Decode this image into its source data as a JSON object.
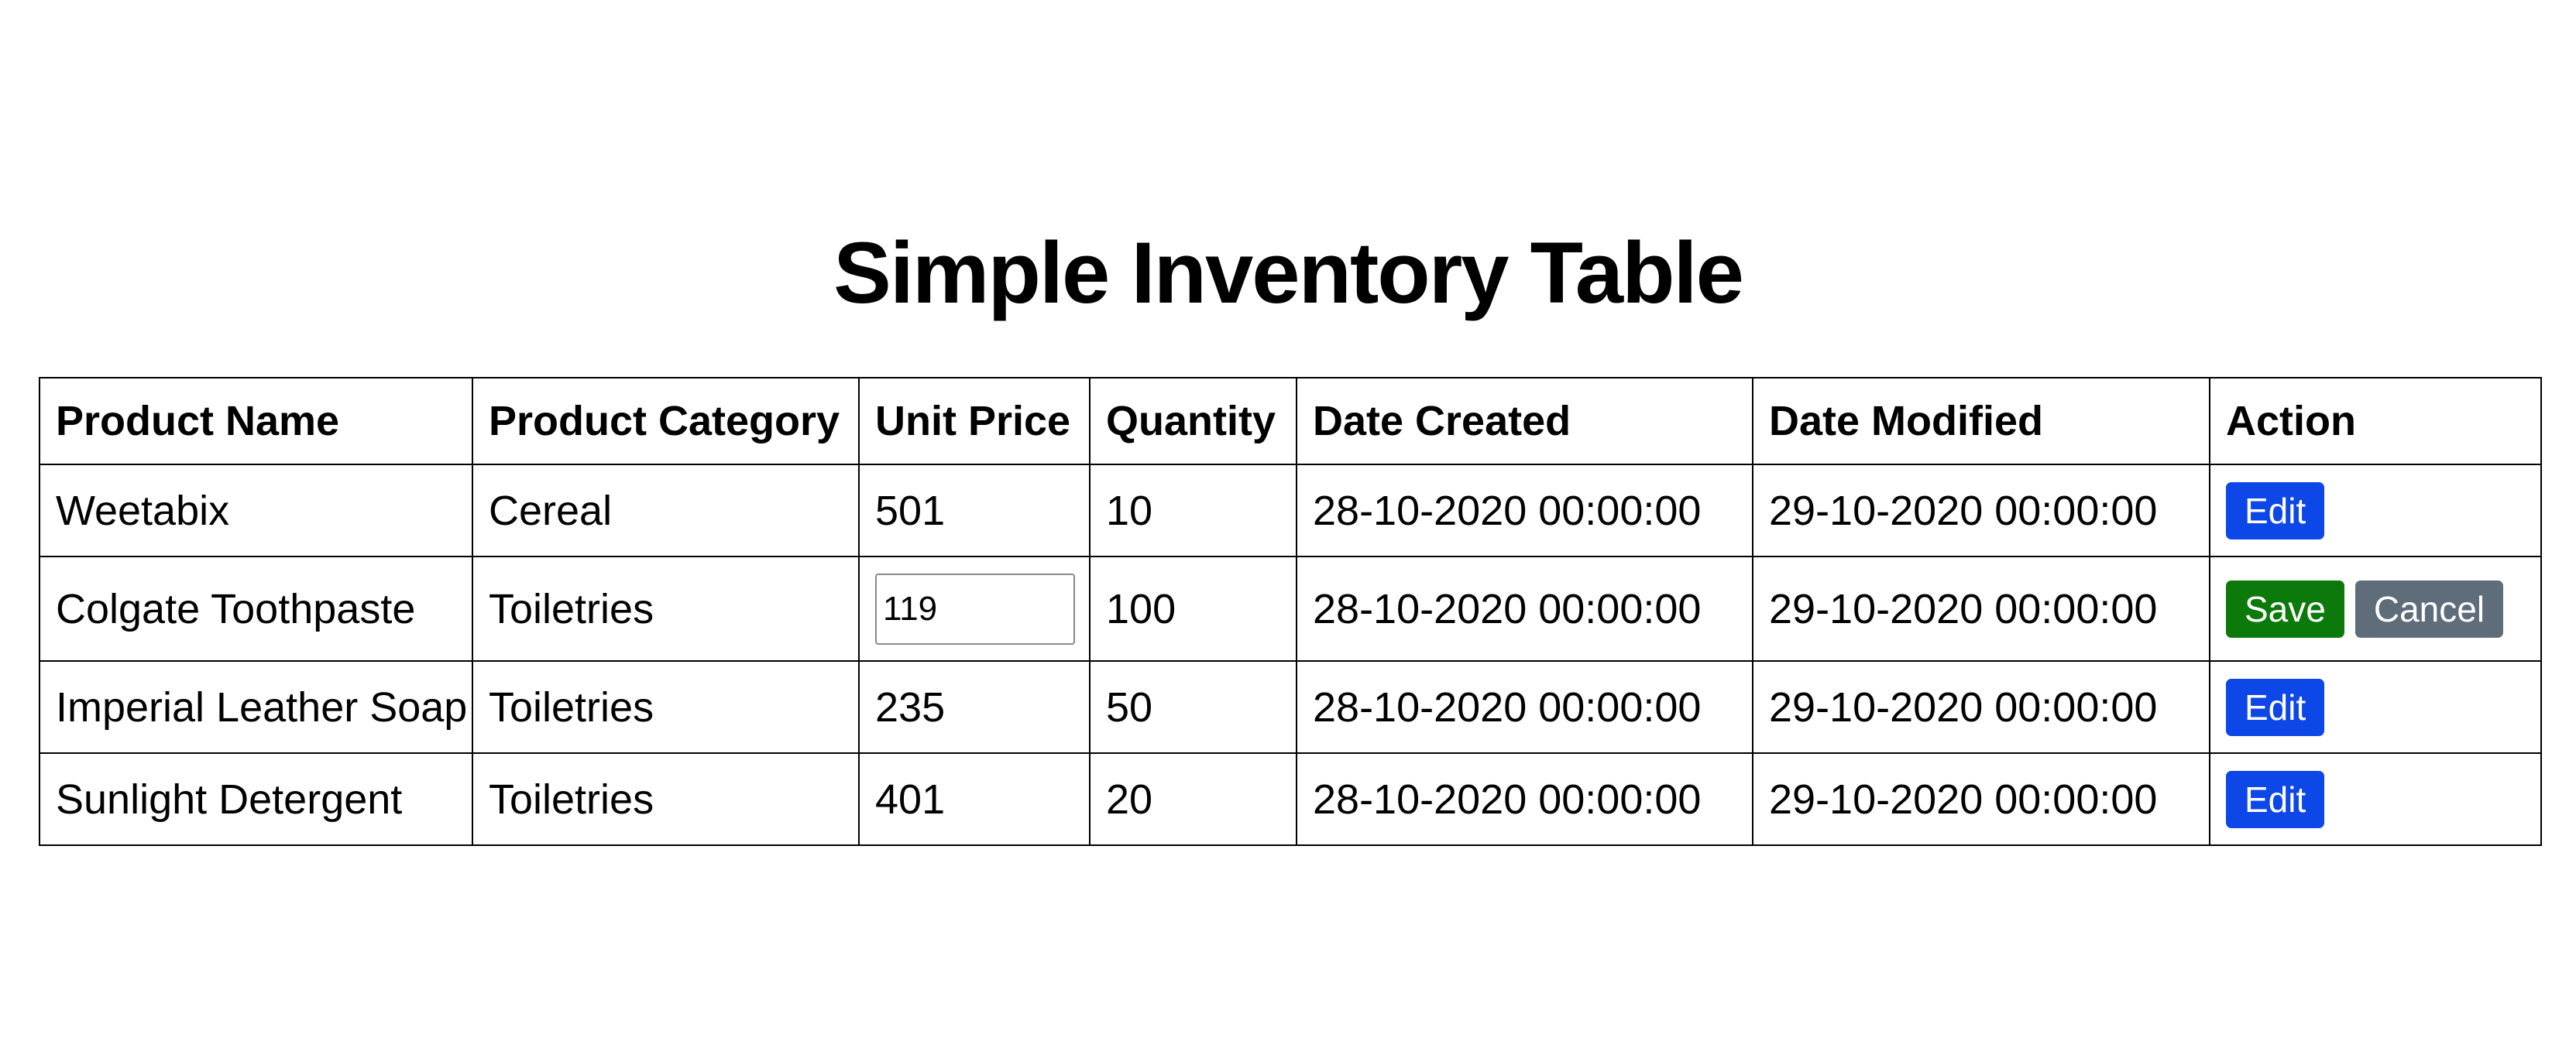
{
  "title": "Simple Inventory Table",
  "table": {
    "headers": {
      "product_name": "Product Name",
      "product_category": "Product Category",
      "unit_price": "Unit Price",
      "quantity": "Quantity",
      "date_created": "Date Created",
      "date_modified": "Date Modified",
      "action": "Action"
    },
    "rows": [
      {
        "product_name": "Weetabix",
        "product_category": "Cereal",
        "unit_price": "501",
        "quantity": "10",
        "date_created": "28-10-2020 00:00:00",
        "date_modified": "29-10-2020 00:00:00",
        "edit_label": "Edit"
      },
      {
        "product_name": "Colgate Toothpaste",
        "product_category": "Toiletries",
        "unit_price_input": "119",
        "quantity": "100",
        "date_created": "28-10-2020 00:00:00",
        "date_modified": "29-10-2020 00:00:00",
        "save_label": "Save",
        "cancel_label": "Cancel"
      },
      {
        "product_name": "Imperial Leather Soap",
        "product_category": "Toiletries",
        "unit_price": "235",
        "quantity": "50",
        "date_created": "28-10-2020 00:00:00",
        "date_modified": "29-10-2020 00:00:00",
        "edit_label": "Edit"
      },
      {
        "product_name": "Sunlight Detergent",
        "product_category": "Toiletries",
        "unit_price": "401",
        "quantity": "20",
        "date_created": "28-10-2020 00:00:00",
        "date_modified": "29-10-2020 00:00:00",
        "edit_label": "Edit"
      }
    ]
  },
  "colors": {
    "edit_button": "#0d47e8",
    "save_button": "#0b7a0b",
    "cancel_button": "#5f6c7a"
  }
}
